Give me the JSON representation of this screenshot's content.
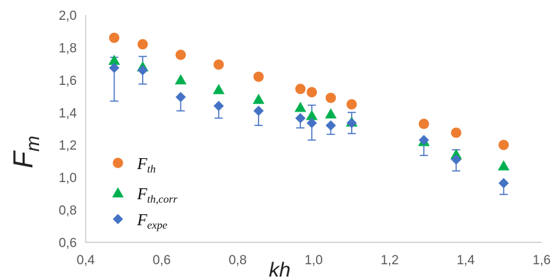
{
  "chart_data": {
    "type": "scatter",
    "xlabel": "kh",
    "ylabel": "F",
    "ylabel_sub": "m",
    "xlim": [
      0.4,
      1.6
    ],
    "ylim": [
      0.6,
      2.0
    ],
    "x_ticks": [
      "0,4",
      "0,6",
      "0,8",
      "1,0",
      "1,2",
      "1,4",
      "1,6"
    ],
    "y_ticks": [
      "0,6",
      "0,8",
      "1,0",
      "1,2",
      "1,4",
      "1,6",
      "1,8",
      "2,0"
    ],
    "grid": false,
    "legend_position": "bottom-left",
    "series": [
      {
        "name": "F",
        "name_sub": "th",
        "marker": "circle",
        "color": "#ED7D31",
        "x": [
          0.475,
          0.55,
          0.65,
          0.75,
          0.855,
          0.965,
          0.995,
          1.045,
          1.1,
          1.29,
          1.375,
          1.5
        ],
        "y": [
          1.86,
          1.82,
          1.755,
          1.695,
          1.62,
          1.545,
          1.525,
          1.49,
          1.45,
          1.33,
          1.275,
          1.2
        ]
      },
      {
        "name": "F",
        "name_sub": "th,corr",
        "marker": "triangle",
        "color": "#00B050",
        "x": [
          0.475,
          0.55,
          0.65,
          0.75,
          0.855,
          0.965,
          0.995,
          1.045,
          1.1,
          1.29,
          1.375,
          1.5
        ],
        "y": [
          1.72,
          1.68,
          1.6,
          1.54,
          1.48,
          1.43,
          1.38,
          1.39,
          1.34,
          1.22,
          1.14,
          1.07
        ]
      },
      {
        "name": "F",
        "name_sub": "expe",
        "marker": "diamond",
        "color": "#4472C4",
        "x": [
          0.475,
          0.55,
          0.65,
          0.75,
          0.855,
          0.965,
          0.995,
          1.045,
          1.1,
          1.29,
          1.375,
          1.5
        ],
        "y": [
          1.675,
          1.66,
          1.495,
          1.44,
          1.41,
          1.365,
          1.335,
          1.32,
          1.335,
          1.23,
          1.11,
          0.965
        ],
        "err_low": [
          1.47,
          1.575,
          1.41,
          1.365,
          1.32,
          1.305,
          1.23,
          1.265,
          1.27,
          1.135,
          1.04,
          0.895
        ],
        "err_high": [
          1.74,
          1.745,
          1.495,
          1.44,
          1.41,
          1.365,
          1.445,
          1.32,
          1.4,
          1.23,
          1.17,
          0.965
        ]
      }
    ]
  }
}
